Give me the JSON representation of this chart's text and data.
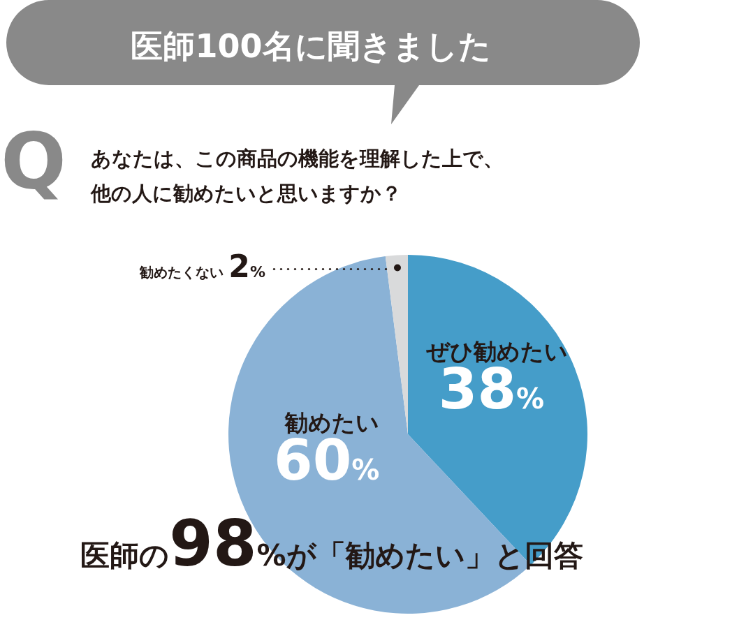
{
  "chart_data": {
    "type": "pie",
    "title": "医師100名に聞きました",
    "subtitle": "あなたは、この商品の機能を理解した上で、他の人に勧めたいと思いますか？",
    "categories": [
      "ぜひ勧めたい",
      "勧めたい",
      "勧めたくない"
    ],
    "values": [
      38,
      60,
      2
    ],
    "colors": [
      "#459dc9",
      "#8ab2d6",
      "#d9dadb"
    ],
    "value_labels": [
      "38%",
      "60%",
      "2%"
    ],
    "annotations": [
      "Q",
      "医師の98%が「勧めたい」と回答"
    ]
  }
}
